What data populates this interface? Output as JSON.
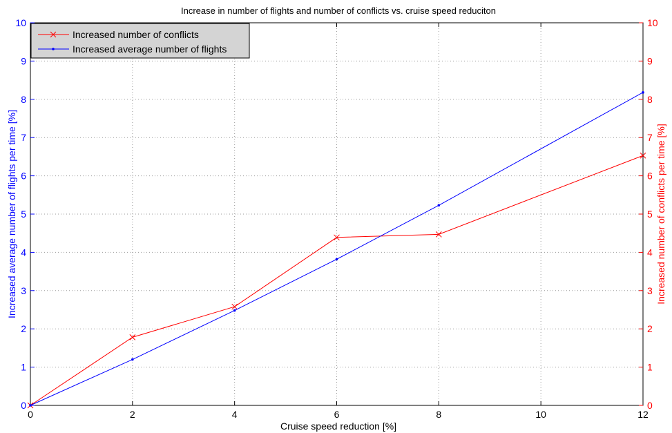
{
  "chart_data": {
    "type": "line",
    "title": "Increase in number of flights and number of conflicts vs. cruise speed reduciton",
    "xlabel": "Cruise speed reduction [%]",
    "ylabel_left": "Increased average number of flights per time [%]",
    "ylabel_right": "Increased number of conflicts per time [%]",
    "xlim": [
      0,
      12
    ],
    "ylim_left": [
      0,
      10
    ],
    "ylim_right": [
      0,
      10
    ],
    "x_ticks": [
      "0",
      "2",
      "4",
      "6",
      "8",
      "10",
      "12"
    ],
    "y_ticks_left": [
      "0",
      "1",
      "2",
      "3",
      "4",
      "5",
      "6",
      "7",
      "8",
      "9",
      "10"
    ],
    "y_ticks_right": [
      "0",
      "1",
      "2",
      "3",
      "4",
      "5",
      "6",
      "7",
      "8",
      "9",
      "10"
    ],
    "grid": "dotted",
    "legend_position": "top-left",
    "series": [
      {
        "name": "Increased number of conflicts",
        "axis": "right",
        "color": "#ff0000",
        "marker": "x",
        "x": [
          0,
          2,
          4,
          6,
          8,
          12
        ],
        "y": [
          0,
          1.78,
          2.58,
          4.39,
          4.47,
          6.53
        ]
      },
      {
        "name": "Increased average number of flights",
        "axis": "left",
        "color": "#0000ff",
        "marker": "dot",
        "x": [
          0,
          2,
          4,
          6,
          8,
          12
        ],
        "y": [
          0,
          1.2,
          2.48,
          3.82,
          5.23,
          8.18
        ]
      }
    ]
  }
}
